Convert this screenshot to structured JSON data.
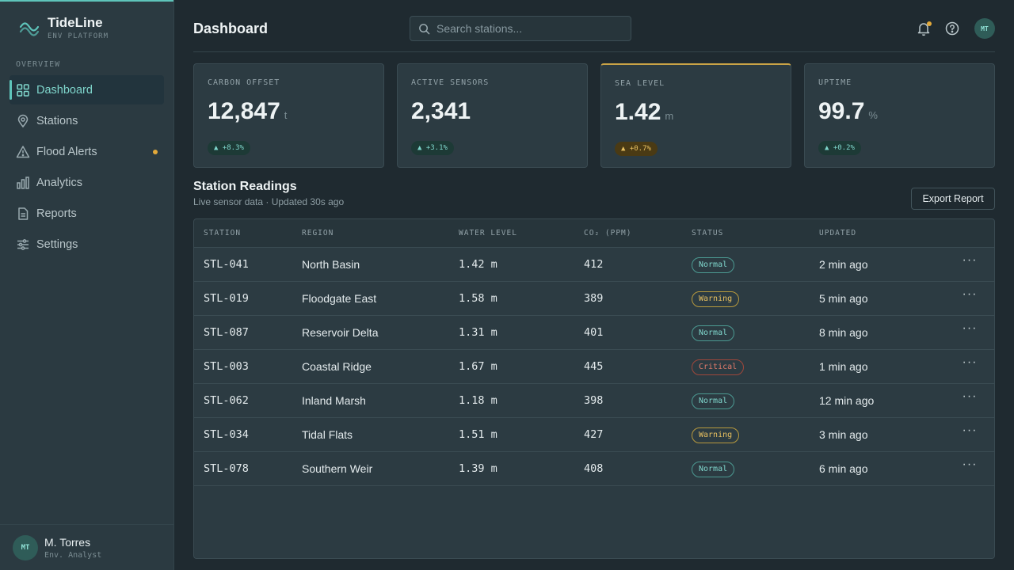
{
  "brand": {
    "name": "TideLine",
    "subtitle": "ENV PLATFORM"
  },
  "sidebar": {
    "section_label": "OVERVIEW",
    "items": [
      {
        "label": "Dashboard",
        "icon": "grid-icon",
        "active": true
      },
      {
        "label": "Stations",
        "icon": "map-pin-icon"
      },
      {
        "label": "Flood Alerts",
        "icon": "warning-icon",
        "dot": true
      },
      {
        "label": "Analytics",
        "icon": "bar-chart-icon"
      },
      {
        "label": "Reports",
        "icon": "document-icon"
      },
      {
        "label": "Settings",
        "icon": "sliders-icon"
      }
    ],
    "user": {
      "initials": "MT",
      "name": "M. Torres",
      "role": "Env. Analyst"
    }
  },
  "header": {
    "title": "Dashboard",
    "search_placeholder": "Search stations...",
    "avatar_initials": "MT"
  },
  "cards": [
    {
      "label": "CARBON OFFSET",
      "value": "12,847",
      "unit": "t",
      "delta": "▲ +8.3%",
      "tone": "good"
    },
    {
      "label": "ACTIVE SENSORS",
      "value": "2,341",
      "unit": "",
      "delta": "▲ +3.1%",
      "tone": "good"
    },
    {
      "label": "SEA LEVEL",
      "value": "1.42",
      "unit": "m",
      "delta": "▲ +0.7%",
      "tone": "warn"
    },
    {
      "label": "UPTIME",
      "value": "99.7",
      "unit": "%",
      "delta": "▲ +0.2%",
      "tone": "good"
    }
  ],
  "readings": {
    "title": "Station Readings",
    "subtitle": "Live sensor data · Updated 30s ago",
    "export_label": "Export Report",
    "columns": [
      "STATION",
      "REGION",
      "WATER LEVEL",
      "CO₂ (PPM)",
      "STATUS",
      "UPDATED"
    ],
    "rows": [
      {
        "station": "STL-041",
        "region": "North Basin",
        "water": "1.42 m",
        "co2": "412",
        "status": "Normal",
        "updated": "2 min ago"
      },
      {
        "station": "STL-019",
        "region": "Floodgate East",
        "water": "1.58 m",
        "co2": "389",
        "status": "Warning",
        "updated": "5 min ago"
      },
      {
        "station": "STL-087",
        "region": "Reservoir Delta",
        "water": "1.31 m",
        "co2": "401",
        "status": "Normal",
        "updated": "8 min ago"
      },
      {
        "station": "STL-003",
        "region": "Coastal Ridge",
        "water": "1.67 m",
        "co2": "445",
        "status": "Critical",
        "updated": "1 min ago"
      },
      {
        "station": "STL-062",
        "region": "Inland Marsh",
        "water": "1.18 m",
        "co2": "398",
        "status": "Normal",
        "updated": "12 min ago"
      },
      {
        "station": "STL-034",
        "region": "Tidal Flats",
        "water": "1.51 m",
        "co2": "427",
        "status": "Warning",
        "updated": "3 min ago"
      },
      {
        "station": "STL-078",
        "region": "Southern Weir",
        "water": "1.39 m",
        "co2": "408",
        "status": "Normal",
        "updated": "6 min ago"
      }
    ]
  },
  "colors": {
    "accent": "#5ec4ba",
    "warning": "#e2a93a",
    "critical": "#e07a6a"
  }
}
